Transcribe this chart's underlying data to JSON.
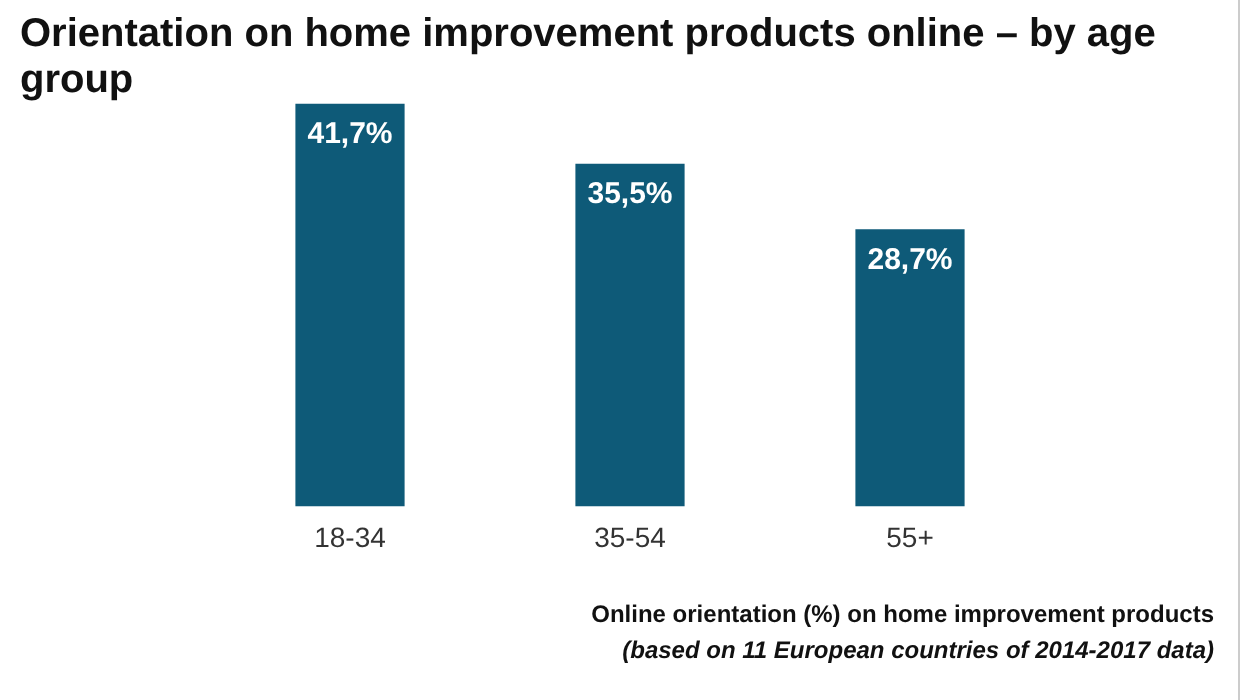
{
  "chart_data": {
    "type": "bar",
    "title": "Orientation on home improvement products online – by age group",
    "categories": [
      "18-34",
      "35-54",
      "55+"
    ],
    "values": [
      41.7,
      35.5,
      28.7
    ],
    "value_labels": [
      "41,7%",
      "35,5%",
      "28,7%"
    ],
    "color": "#0e5a78",
    "grid": false,
    "legend": false,
    "annotations": [
      "Online orientation (%) on home improvement products",
      "(based on 11 European countries of 2014-2017 data)"
    ]
  }
}
